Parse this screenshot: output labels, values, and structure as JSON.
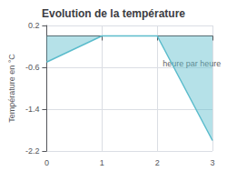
{
  "chart_data": {
    "type": "area",
    "title": "Evolution de la température",
    "ylabel": "Température en °C",
    "x": [
      0,
      1,
      2,
      3
    ],
    "values": [
      -0.5,
      0.0,
      0.0,
      -2.0
    ],
    "color": "#5bbccc",
    "xlim": [
      0,
      3
    ],
    "ylim": [
      -2.2,
      0.2
    ],
    "xticks": [
      0,
      1,
      2,
      3
    ],
    "yticks": [
      0.2,
      -0.6,
      -1.4,
      -2.2
    ],
    "grid": true,
    "annotations": [
      {
        "text": "heure par heure",
        "x": 2.1,
        "y": -0.45
      }
    ]
  }
}
